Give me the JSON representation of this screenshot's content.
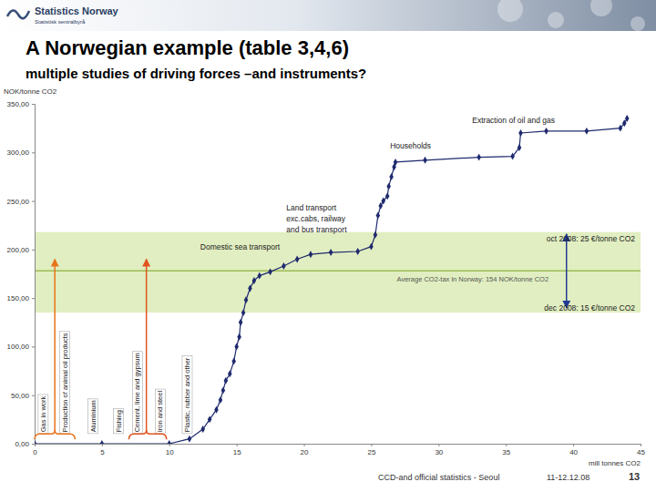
{
  "chart_data": {
    "type": "line",
    "title": "A Norwegian example (table 3,4,6)",
    "subtitle": "multiple studies of driving forces –and instruments?",
    "header": {
      "logo": "Statistics Norway",
      "logo_sub": "Statistisk sentralbyrå"
    },
    "y_label": "NOK/tonne CO2",
    "x_label": "mill tonnes CO2",
    "x": [
      0,
      5,
      10,
      11.5,
      12.5,
      13,
      13.5,
      13.8,
      14,
      14.2,
      14.5,
      14.8,
      15,
      15.2,
      15.3,
      15.5,
      15.7,
      16,
      16.3,
      16.7,
      17.5,
      18.5,
      19.5,
      20.5,
      22,
      24,
      25,
      25.3,
      25.5,
      25.7,
      25.9,
      26.2,
      26.3,
      26.5,
      26.7,
      26.8,
      29,
      33,
      35.5,
      36,
      36.1,
      38,
      41,
      43.5,
      43.8,
      44
    ],
    "values": [
      0,
      0,
      0,
      5,
      15,
      25,
      35,
      45,
      55,
      65,
      72,
      85,
      100,
      110,
      125,
      135,
      148,
      160,
      168,
      173,
      177,
      183,
      190,
      195,
      197,
      198,
      203,
      215,
      235,
      245,
      250,
      255,
      265,
      275,
      285,
      290,
      292,
      295,
      296,
      305,
      320,
      322,
      322,
      325,
      330,
      335
    ],
    "color": "#1f2a6e",
    "marker": "diamond",
    "grid": false,
    "xlim": [
      0,
      45
    ],
    "xticks": [
      0,
      5,
      10,
      15,
      20,
      25,
      30,
      35,
      40,
      45
    ],
    "ylim": [
      0,
      350
    ],
    "yticks": [
      {
        "value": 0,
        "label": "0,00"
      },
      {
        "value": 50,
        "label": "50,00"
      },
      {
        "value": 100,
        "label": "100,00"
      },
      {
        "value": 150,
        "label": "150,00"
      },
      {
        "value": 200,
        "label": "200,00"
      },
      {
        "value": 250,
        "label": "250,00"
      },
      {
        "value": 300,
        "label": "300,00"
      },
      {
        "value": 350,
        "label": "350,00"
      }
    ],
    "bands": [
      {
        "from": 135,
        "to": 218,
        "color": "#dcebb6"
      }
    ],
    "reference_line": {
      "value": 178,
      "color": "#9dbb55"
    },
    "annotations": [
      {
        "text": "Extraction of oil and gas",
        "x": 32.5,
        "y": 330
      },
      {
        "text": "Households",
        "x": 26.4,
        "y": 304
      },
      {
        "text": "Land transport",
        "x": 18.7,
        "y": 240
      },
      {
        "text": "exc.cabs, railway",
        "x": 18.7,
        "y": 229
      },
      {
        "text": "and bus transport",
        "x": 18.7,
        "y": 218
      },
      {
        "text": "Domestic sea transport",
        "x": 12.3,
        "y": 200
      },
      {
        "text": "Average CO2-tax in Norway: 154 NOK/tonne CO2",
        "x": 26.9,
        "y": 167
      },
      {
        "text": "oct 2008: 25 €/tonne CO2",
        "x": 44.6,
        "y": 208
      },
      {
        "text": "dec 2008: 15 €/tonne CO2",
        "x": 44.6,
        "y": 137
      }
    ],
    "sector_labels": [
      {
        "text": "Gas in work",
        "x": 0.6,
        "y": 10
      },
      {
        "text": "Production of animal oil products",
        "x": 2.2,
        "y": 10
      },
      {
        "text": "Aluminium",
        "x": 4.3,
        "y": 10
      },
      {
        "text": "Fishing",
        "x": 6.2,
        "y": 10
      },
      {
        "text": "Cement, lime and gypsum",
        "x": 7.6,
        "y": 10
      },
      {
        "text": "Iron and steel",
        "x": 9.3,
        "y": 10
      },
      {
        "text": "Plastic, rubber and other",
        "x": 11.3,
        "y": 10
      }
    ],
    "arrows": [
      {
        "x": 1.5,
        "from": 12,
        "to": 190,
        "color": "#e8731a",
        "brace_from": 0,
        "brace_to": 3
      },
      {
        "x": 8.3,
        "from": 12,
        "to": 190,
        "color": "#e0541e",
        "brace_from": 7,
        "brace_to": 9.8
      },
      {
        "x": 39.5,
        "from": 140,
        "to": 216,
        "color": "#1f3a93"
      }
    ],
    "footer": {
      "source": "CCD-and official statistics - Seoul",
      "date": "11-12.12.08",
      "page": 13
    }
  }
}
